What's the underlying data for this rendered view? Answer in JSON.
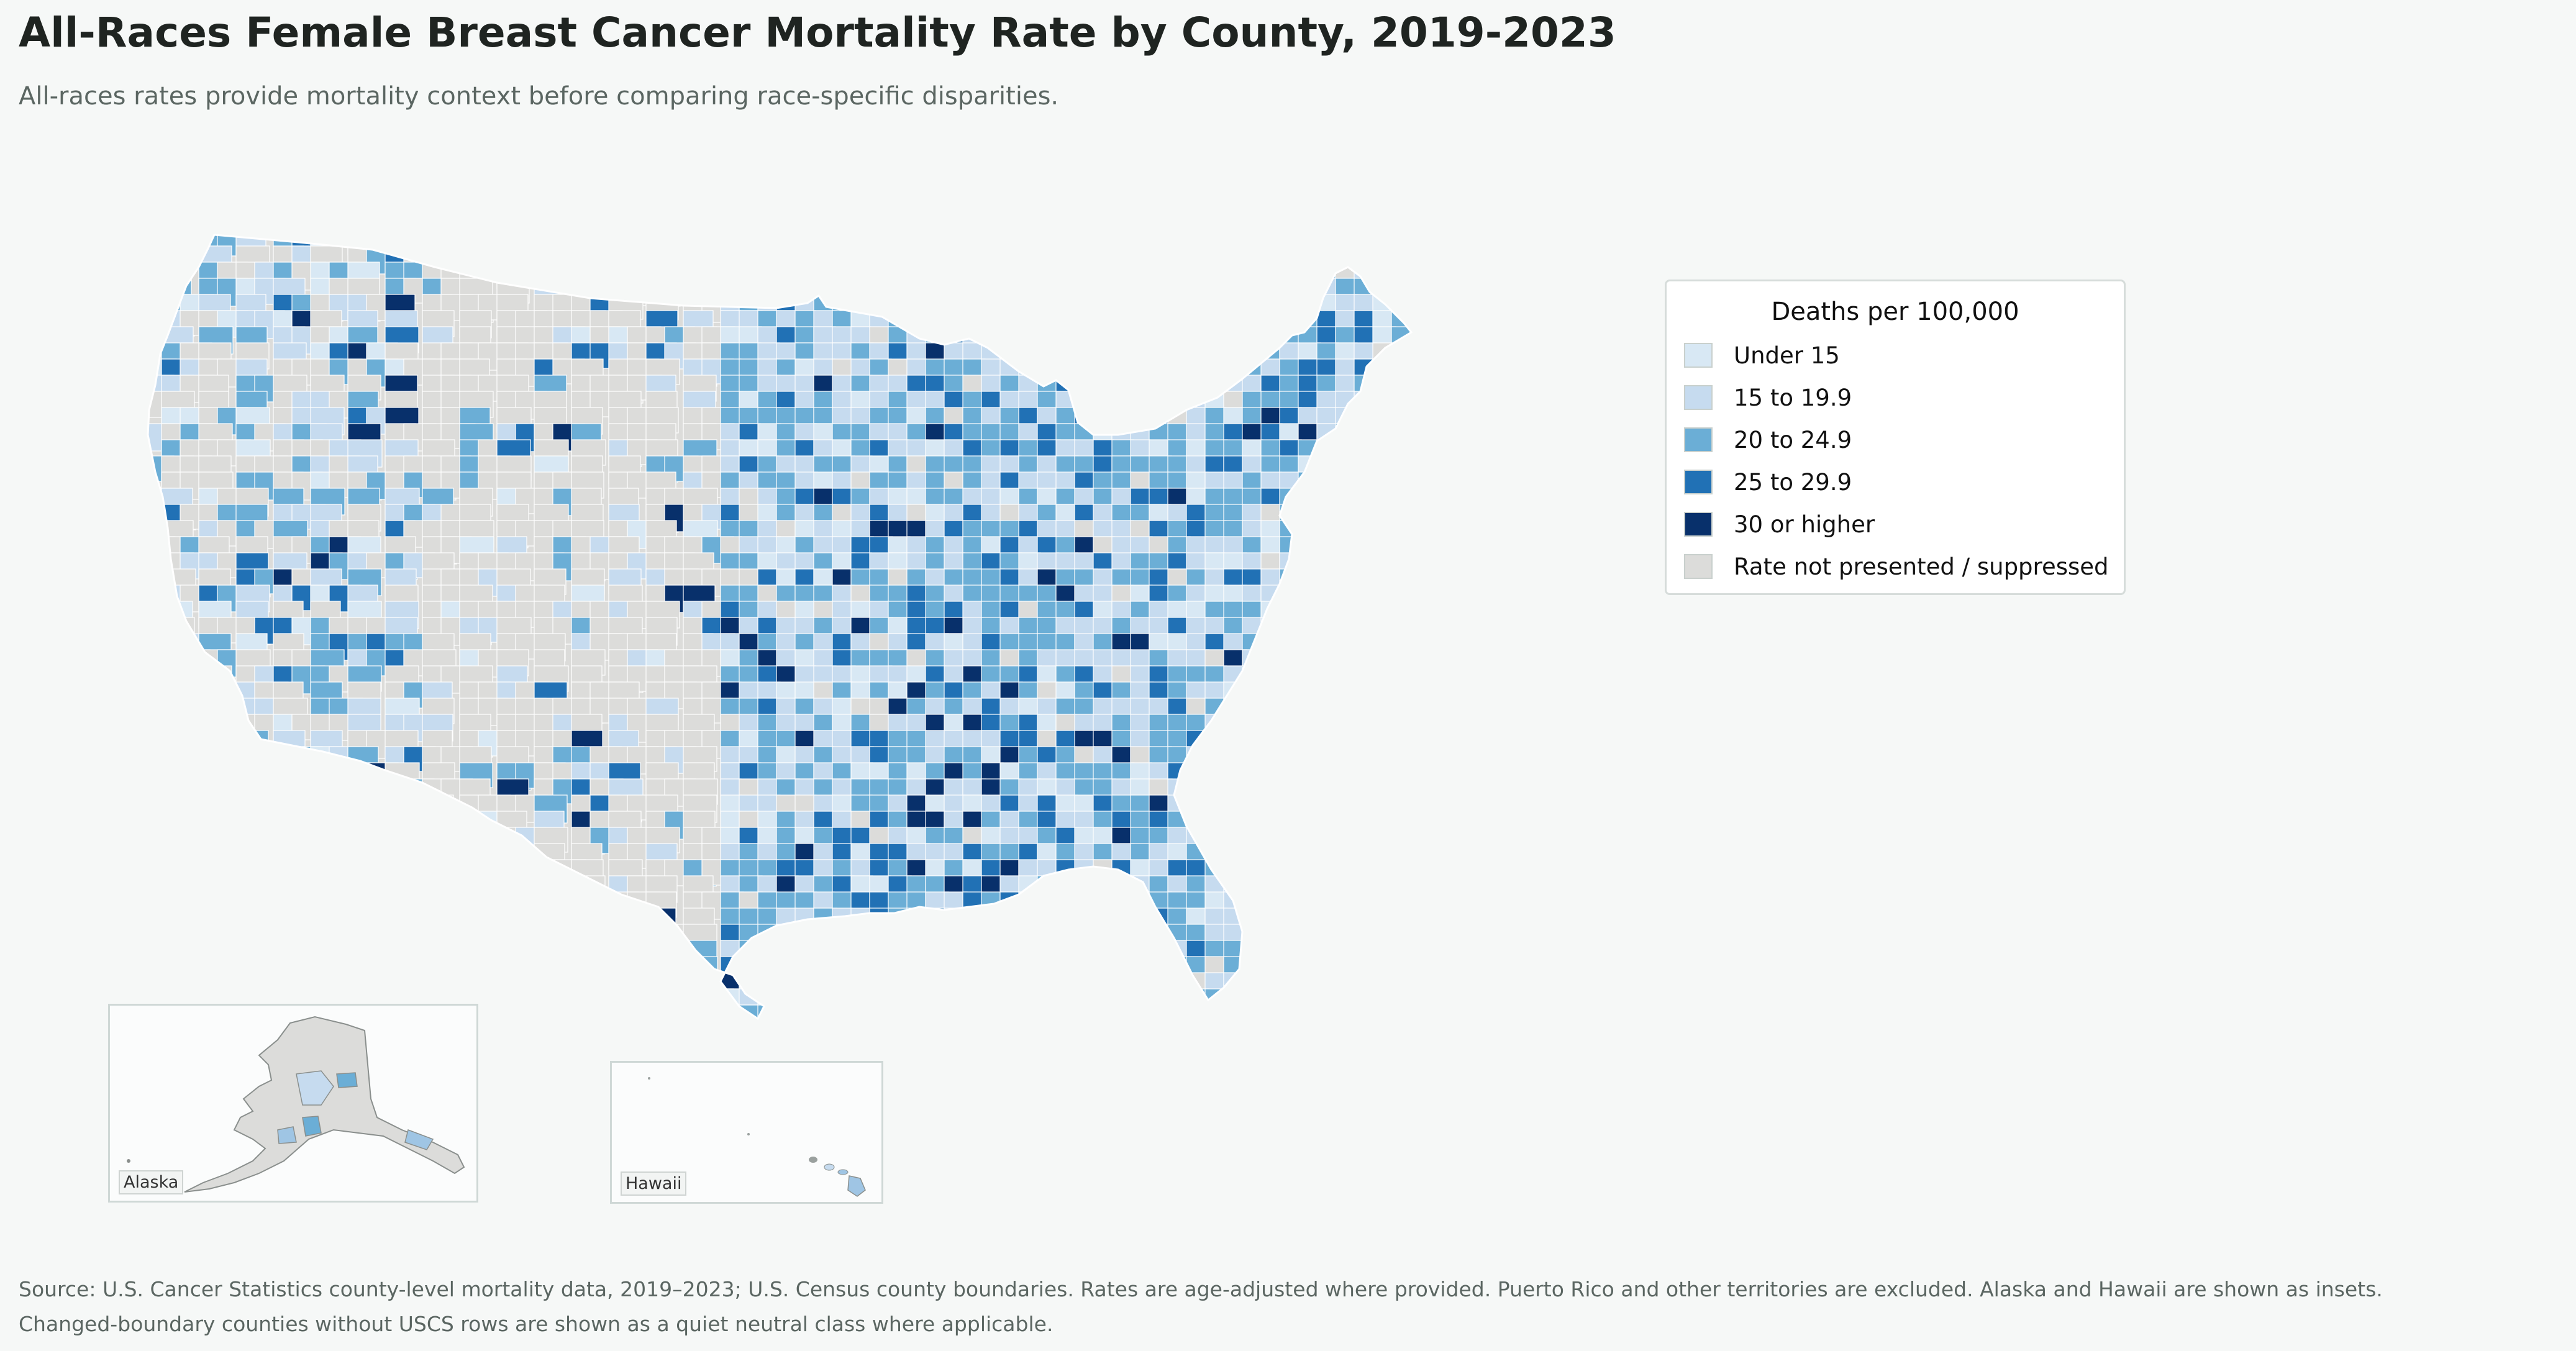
{
  "title": "All-Races Female Breast Cancer Mortality Rate by County, 2019-2023",
  "subtitle": "All-races rates provide mortality context before comparing race-specific disparities.",
  "legend": {
    "title": "Deaths per 100,000",
    "items": [
      {
        "label": "Under 15",
        "color": "#d8e8f4"
      },
      {
        "label": "15 to 19.9",
        "color": "#c6dbef"
      },
      {
        "label": "20 to 24.9",
        "color": "#6baed6"
      },
      {
        "label": "25 to 29.9",
        "color": "#2171b5"
      },
      {
        "label": "30 or higher",
        "color": "#08306b"
      },
      {
        "label": "Rate not presented / suppressed",
        "color": "#dcdcda"
      }
    ]
  },
  "insets": {
    "alaska_label": "Alaska",
    "hawaii_label": "Hawaii"
  },
  "source": {
    "line1": "Source: U.S. Cancer Statistics county-level mortality data, 2019–2023; U.S. Census county boundaries. Rates are age-adjusted where provided. Puerto Rico and other territories are excluded. Alaska and Hawaii are shown as insets.",
    "line2": "Changed-boundary counties without USCS rows are shown as a quiet neutral class where applicable."
  }
}
